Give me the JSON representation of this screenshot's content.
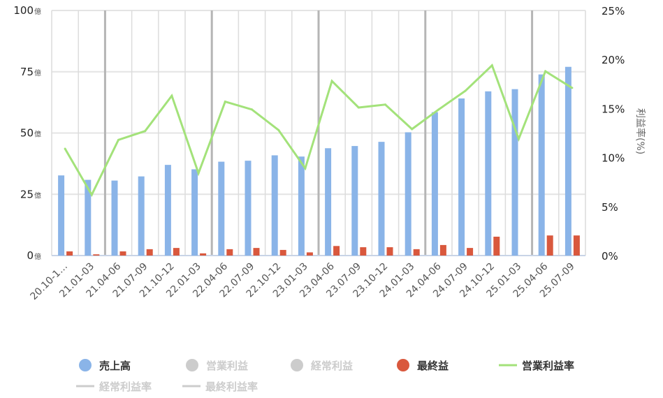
{
  "chart_data": {
    "type": "bar+line",
    "categories": [
      "20.10-1…",
      "21.01-03",
      "21.04-06",
      "21.07-09",
      "21.10-12",
      "22.01-03",
      "22.04-06",
      "22.07-09",
      "22.10-12",
      "23.01-03",
      "23.04-06",
      "23.07-09",
      "23.10-12",
      "24.01-03",
      "24.04-06",
      "24.07-09",
      "24.10-12",
      "25.01-03",
      "25.04-06",
      "25.07-09"
    ],
    "y_left": {
      "range": [
        0,
        100
      ],
      "ticks": [
        0,
        25,
        50,
        75,
        100
      ],
      "unit": "億"
    },
    "y_right": {
      "range": [
        0,
        25
      ],
      "ticks": [
        "0%",
        "5%",
        "10%",
        "15%",
        "20%",
        "25%"
      ],
      "label": "利益率(%)"
    },
    "grid": true,
    "legend_position": "bottom",
    "series": [
      {
        "name": "売上高",
        "type": "bar",
        "axis": "left",
        "color": "#8ab4e8",
        "active": true,
        "values": [
          32.7,
          30.9,
          30.6,
          32.3,
          37.0,
          35.2,
          38.3,
          38.7,
          40.9,
          40.4,
          43.8,
          44.7,
          46.4,
          50.3,
          58.5,
          64.1,
          67.0,
          67.9,
          73.9,
          77.0
        ]
      },
      {
        "name": "営業利益",
        "type": "bar",
        "color": "#cccccc",
        "active": false
      },
      {
        "name": "経常利益",
        "type": "bar",
        "color": "#cccccc",
        "active": false
      },
      {
        "name": "最終益",
        "type": "bar",
        "axis": "left",
        "color": "#d9583d",
        "active": true,
        "values": [
          1.7,
          0.5,
          1.7,
          2.6,
          3.1,
          0.9,
          2.6,
          3.1,
          2.3,
          1.3,
          3.9,
          3.4,
          3.4,
          2.6,
          4.3,
          3.1,
          7.7,
          0,
          8.2,
          8.2
        ]
      },
      {
        "name": "営業利益率",
        "type": "line",
        "axis": "right",
        "color": "#a3e27a",
        "active": true,
        "values": [
          10.9,
          6.2,
          11.8,
          12.7,
          16.3,
          8.4,
          15.7,
          14.9,
          12.8,
          8.9,
          17.8,
          15.1,
          15.4,
          12.9,
          14.9,
          16.8,
          19.4,
          11.9,
          18.8,
          17.1
        ]
      },
      {
        "name": "経常利益率",
        "type": "line",
        "color": "#cccccc",
        "active": false
      },
      {
        "name": "最終利益率",
        "type": "line",
        "color": "#cccccc",
        "active": false
      }
    ]
  }
}
